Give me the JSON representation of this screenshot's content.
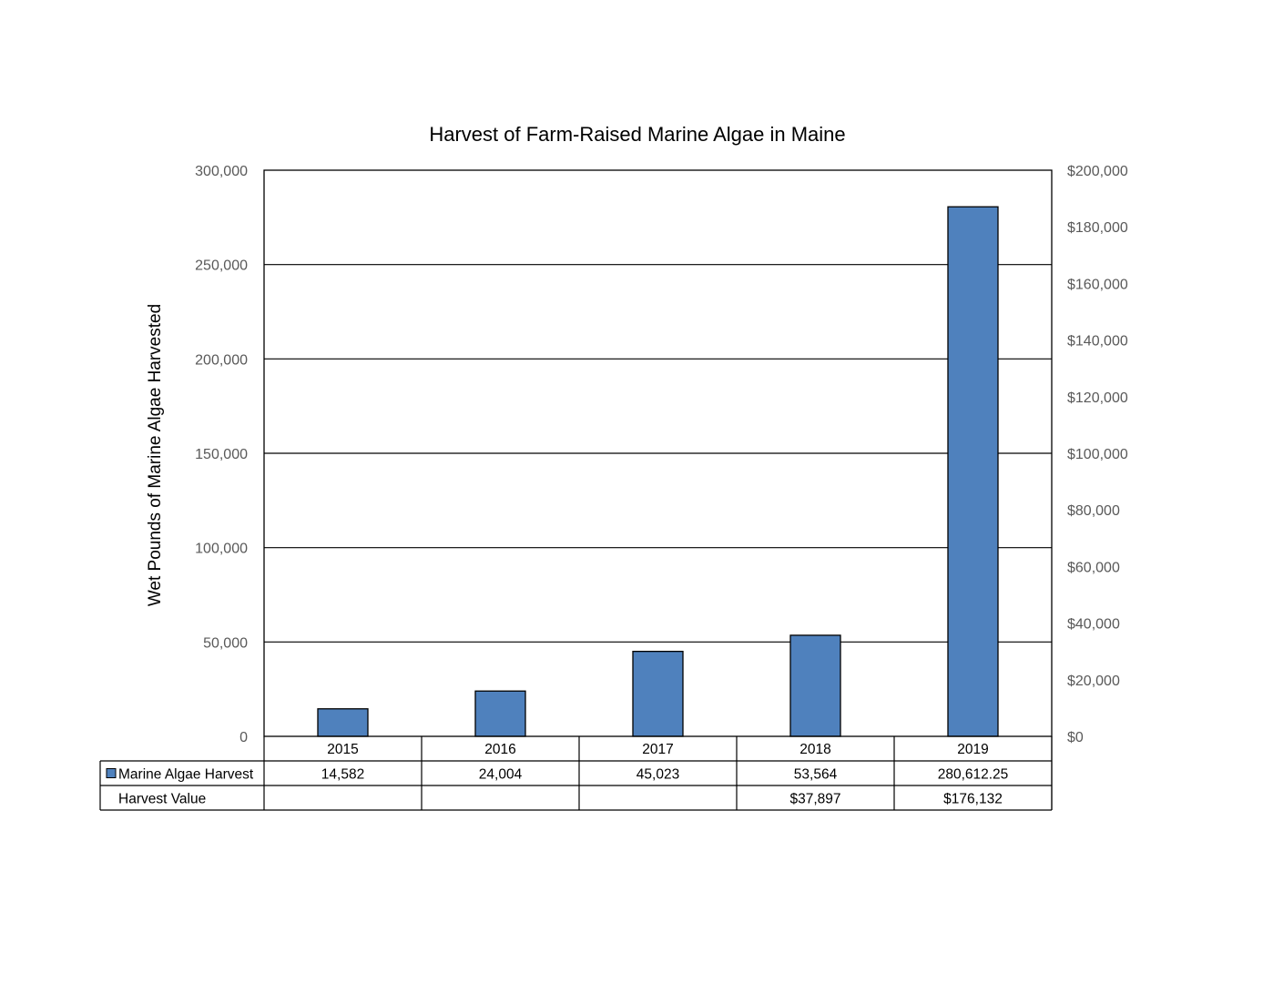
{
  "chart_data": {
    "type": "bar",
    "title": "Harvest of Farm-Raised Marine Algae in Maine",
    "ylabel": "Wet Pounds of Marine Algae Harvested",
    "xlabel": "",
    "categories": [
      "2015",
      "2016",
      "2017",
      "2018",
      "2019"
    ],
    "series": [
      {
        "name": "Marine Algae Harvest",
        "values": [
          14582,
          24004,
          45023,
          53564,
          280612.25
        ],
        "color": "#4f81bd",
        "axis": "left"
      }
    ],
    "ylim": [
      0,
      300000
    ],
    "yticks": [
      "0",
      "50,000",
      "100,000",
      "150,000",
      "200,000",
      "250,000",
      "300,000"
    ],
    "ytick_values": [
      0,
      50000,
      100000,
      150000,
      200000,
      250000,
      300000
    ],
    "y2lim": [
      0,
      200000
    ],
    "y2ticks": [
      "$0",
      "$20,000",
      "$40,000",
      "$60,000",
      "$80,000",
      "$100,000",
      "$120,000",
      "$140,000",
      "$160,000",
      "$180,000",
      "$200,000"
    ],
    "grid": true,
    "legend": "data-table",
    "data_table": {
      "rows": [
        {
          "label": "Marine Algae Harvest",
          "has_key": true,
          "cells": [
            "14,582",
            "24,004",
            "45,023",
            "53,564",
            "280,612.25"
          ]
        },
        {
          "label": "Harvest Value",
          "has_key": false,
          "cells": [
            "",
            "",
            "",
            "$37,897",
            "$176,132"
          ]
        }
      ]
    }
  }
}
